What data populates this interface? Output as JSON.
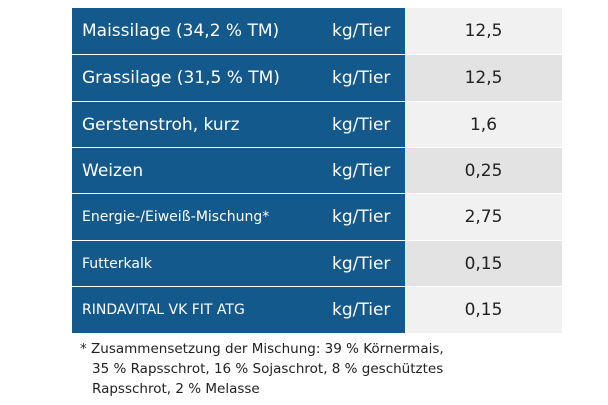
{
  "table": {
    "rows": [
      [
        "Maissilage (34,2 % TM)",
        "kg/Tier",
        "12,5"
      ],
      [
        "Grassilage (31,5 % TM)",
        "kg/Tier",
        "12,5"
      ],
      [
        "Gerstenstroh, kurz",
        "kg/Tier",
        "1,6"
      ],
      [
        "Weizen",
        "kg/Tier",
        "0,25"
      ],
      [
        "Energie-/Eiweiß-Mischung*",
        "kg/Tier",
        "2,75"
      ],
      [
        "Futterkalk",
        "kg/Tier",
        "0,15"
      ],
      [
        "RINDAVITAL VK FIT ATG",
        "kg/Tier",
        "0,15"
      ]
    ]
  },
  "footnote": {
    "lines": [
      "* Zusammensetzung der Mischung: 39 % Körnermais,",
      "35 % Rapsschrot, 16 % Sojaschrot, 8 % geschütztes",
      "Rapsschrot, 2 % Melasse"
    ]
  }
}
